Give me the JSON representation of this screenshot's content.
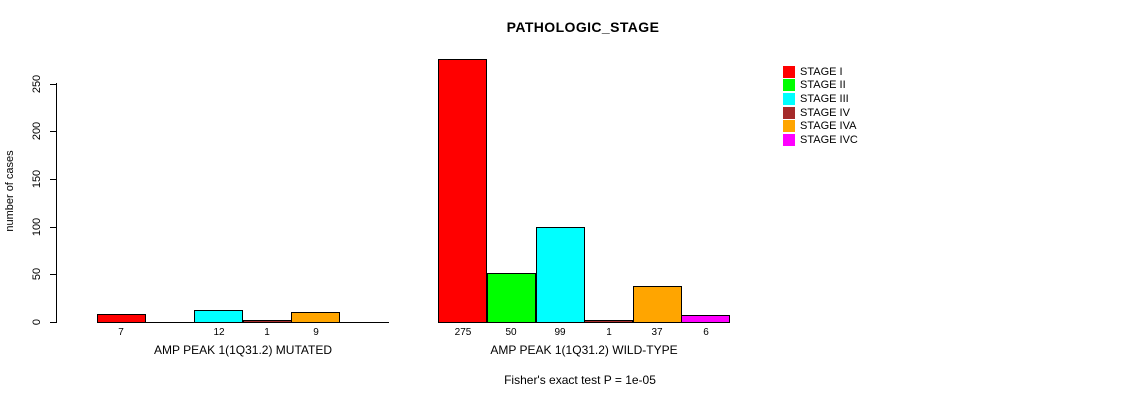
{
  "chart_data": {
    "type": "bar",
    "title": "PATHOLOGIC_STAGE",
    "ylabel": "number of cases",
    "ylim": [
      0,
      250
    ],
    "yticks": [
      0,
      50,
      100,
      150,
      200,
      250
    ],
    "grid": false,
    "legend_position": "right",
    "stages": [
      {
        "label": "STAGE I",
        "color": "#ff0000"
      },
      {
        "label": "STAGE II",
        "color": "#00ff00"
      },
      {
        "label": "STAGE III",
        "color": "#00ffff"
      },
      {
        "label": "STAGE IV",
        "color": "#a52a2a"
      },
      {
        "label": "STAGE IVA",
        "color": "#ffa500"
      },
      {
        "label": "STAGE IVC",
        "color": "#ff00ff"
      }
    ],
    "groups": [
      {
        "label": "AMP PEAK 1(1Q31.2) MUTATED",
        "values": [
          7,
          0,
          12,
          1,
          9,
          0
        ],
        "bar_labels": [
          "7",
          "",
          "12",
          "1",
          "9",
          ""
        ]
      },
      {
        "label": "AMP PEAK 1(1Q31.2) WILD-TYPE",
        "values": [
          275,
          50,
          99,
          1,
          37,
          6
        ],
        "bar_labels": [
          "275",
          "50",
          "99",
          "1",
          "37",
          "6"
        ]
      }
    ],
    "annotation": "Fisher's exact test P = 1e-05"
  }
}
